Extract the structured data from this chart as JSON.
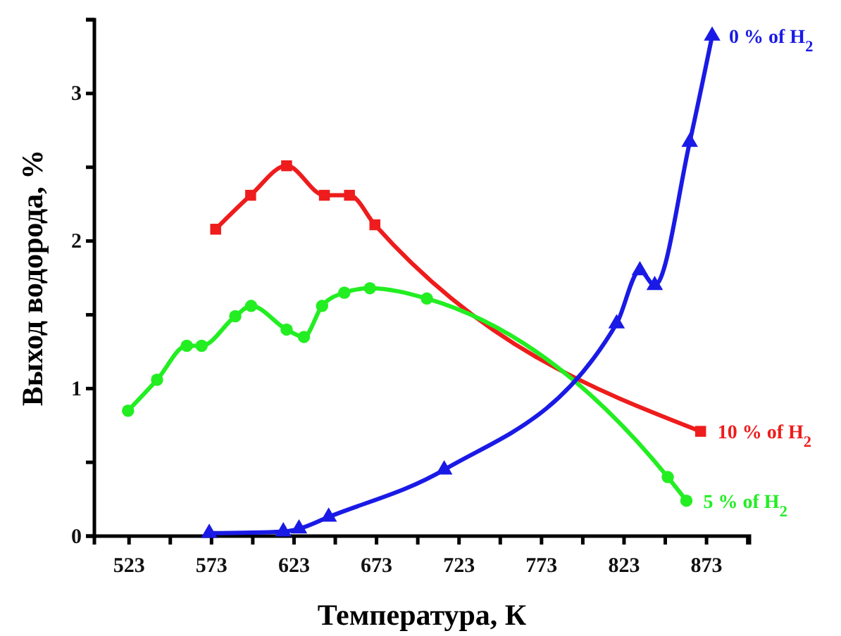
{
  "chart_data": {
    "type": "line",
    "xlabel": "Температура, К",
    "ylabel": "Выход водорода, %",
    "xlim": [
      502,
      899
    ],
    "ylim": [
      0,
      3.5
    ],
    "xticks": [
      523,
      {
        "value": 548,
        "label": null
      },
      573,
      {
        "value": 598,
        "label": null
      },
      623,
      {
        "value": 648,
        "label": null
      },
      673,
      {
        "value": 698,
        "label": null
      },
      723,
      {
        "value": 748,
        "label": null
      },
      773,
      {
        "value": 798,
        "label": null
      },
      823,
      {
        "value": 848,
        "label": null
      },
      873,
      {
        "value": 898,
        "label": null
      }
    ],
    "yticks": [
      0,
      {
        "value": 0.5,
        "label": null
      },
      1,
      {
        "value": 1.5,
        "label": null
      },
      2,
      {
        "value": 2.5,
        "label": null
      },
      3,
      {
        "value": 3.5,
        "label": null
      }
    ],
    "grid": false,
    "legend": false,
    "series": [
      {
        "name": "10 % of H$_{2}$",
        "color": "#ee1c1c",
        "marker": "square",
        "x": [
          575.5,
          596.7,
          618.5,
          641.4,
          656.6,
          672,
          869.4
        ],
        "values": [
          2.08,
          2.31,
          2.51,
          2.31,
          2.31,
          2.11,
          0.71
        ]
      },
      {
        "name": "5 % of H$_{2}$",
        "color": "#22ee22",
        "marker": "circle",
        "x": [
          522.4,
          540,
          558,
          567,
          587.4,
          597,
          618.5,
          629,
          640,
          653.5,
          669,
          703.5,
          849.5,
          860.8
        ],
        "values": [
          0.85,
          1.06,
          1.29,
          1.29,
          1.49,
          1.56,
          1.4,
          1.35,
          1.56,
          1.65,
          1.68,
          1.61,
          0.4,
          0.24
        ]
      },
      {
        "name": "0 % of H$_{2}$",
        "color": "#1a1ae6",
        "marker": "triangle",
        "x": [
          571.6,
          616.5,
          626,
          644,
          714,
          818.5,
          832.6,
          841.6,
          862.8,
          876.4
        ],
        "values": [
          0.02,
          0.03,
          0.05,
          0.13,
          0.45,
          1.44,
          1.8,
          1.7,
          2.67,
          3.39
        ]
      }
    ]
  }
}
